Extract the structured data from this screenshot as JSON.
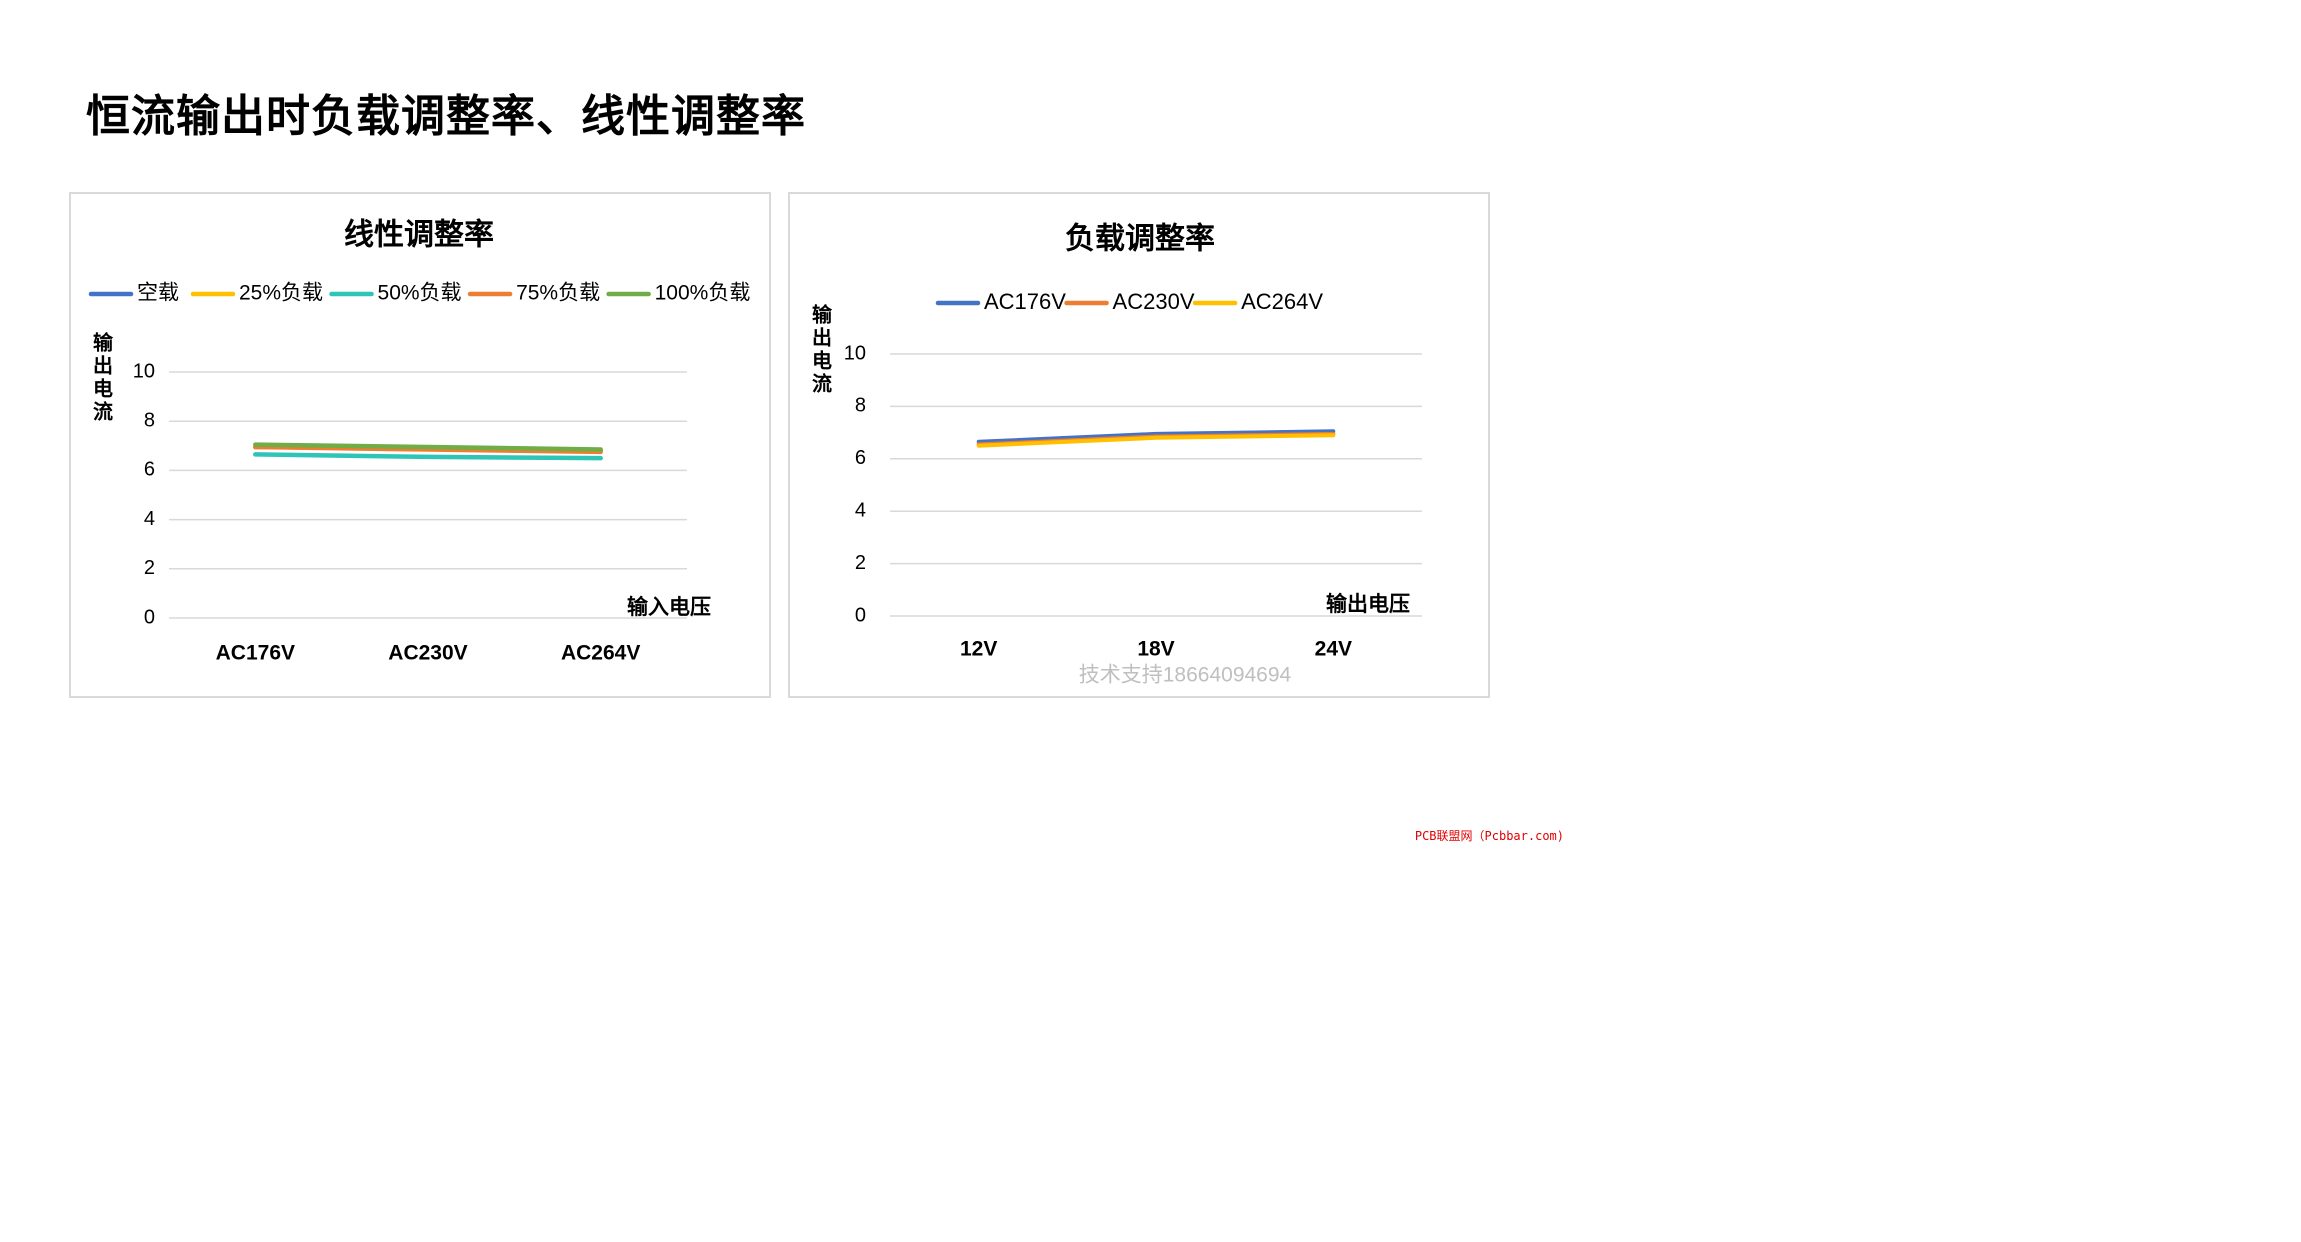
{
  "page": {
    "title": "恒流输出时负载调整率、线性调整率",
    "watermark_bottom_right": "PCB联盟网（Pcbbar.com)"
  },
  "colors": {
    "blue": "#4472C4",
    "orange": "#ED7D31",
    "gold": "#FFC000",
    "teal": "#2EC4B6",
    "green": "#70AD47",
    "grid": "#d9d9d9",
    "panel_border": "#d9d9d9",
    "watermark_gray": "#bfbfbf",
    "watermark_red": "#e00000"
  },
  "chart_data": [
    {
      "type": "line",
      "title": "线性调整率",
      "xlabel": "输入电压",
      "ylabel": "输出电流",
      "categories": [
        "AC176V",
        "AC230V",
        "AC264V"
      ],
      "ylim": [
        0,
        10
      ],
      "yticks": [
        0,
        2,
        4,
        6,
        8,
        10
      ],
      "grid": true,
      "legend_position": "top",
      "series": [
        {
          "name": "空载",
          "color": "#4472C4",
          "values": [
            6.95,
            6.9,
            6.8
          ]
        },
        {
          "name": "25%负载",
          "color": "#FFC000",
          "values": [
            6.95,
            6.9,
            6.8
          ]
        },
        {
          "name": "50%负载",
          "color": "#2EC4B6",
          "values": [
            6.65,
            6.55,
            6.5
          ]
        },
        {
          "name": "75%负载",
          "color": "#ED7D31",
          "values": [
            6.95,
            6.85,
            6.75
          ]
        },
        {
          "name": "100%负载",
          "color": "#70AD47",
          "values": [
            7.05,
            6.95,
            6.85
          ]
        }
      ]
    },
    {
      "type": "line",
      "title": "负载调整率",
      "xlabel": "输出电压",
      "ylabel": "输出电流",
      "categories": [
        "12V",
        "18V",
        "24V"
      ],
      "ylim": [
        0,
        10
      ],
      "yticks": [
        0,
        2,
        4,
        6,
        8,
        10
      ],
      "grid": true,
      "legend_position": "top",
      "watermark": "技术支持18664094694",
      "series": [
        {
          "name": "AC176V",
          "color": "#4472C4",
          "values": [
            6.65,
            6.95,
            7.05
          ]
        },
        {
          "name": "AC230V",
          "color": "#ED7D31",
          "values": [
            6.55,
            6.85,
            6.95
          ]
        },
        {
          "name": "AC264V",
          "color": "#FFC000",
          "values": [
            6.5,
            6.8,
            6.9
          ]
        }
      ]
    }
  ]
}
